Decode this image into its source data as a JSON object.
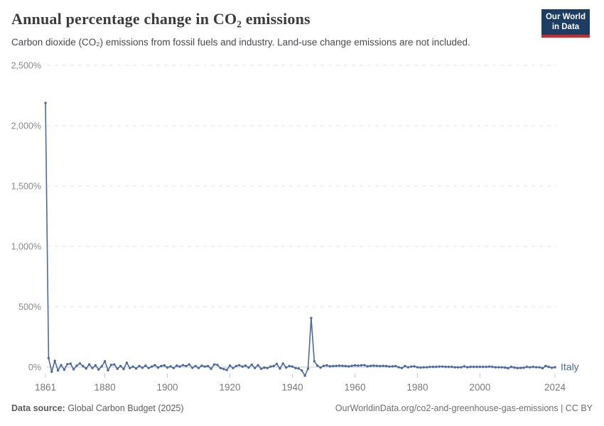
{
  "header": {
    "title": "Annual percentage change in CO₂ emissions",
    "subtitle": "Carbon dioxide (CO₂) emissions from fossil fuels and industry. Land-use change emissions are not included."
  },
  "logo": {
    "line1": "Our World",
    "line2": "in Data",
    "bg_color": "#1d3d63",
    "accent_color": "#cb2d30"
  },
  "footer": {
    "source_label": "Data source:",
    "source_text": " Global Carbon Budget (2025)",
    "link_text": "OurWorldinData.org/co2-and-greenhouse-gas-emissions | CC BY"
  },
  "chart_data": {
    "type": "line",
    "title": "Annual percentage change in CO₂ emissions",
    "xlabel": "",
    "ylabel": "",
    "legend_position": "end-of-line-label",
    "grid": "horizontal-dashed",
    "colors": {
      "gridline": "#e2e2e2",
      "zero_line": "#c9c9c9",
      "tick_label": "#87898c",
      "x_tick_label": "#76787c"
    },
    "x_axis": {
      "min": 1861,
      "max": 2024,
      "ticks": [
        {
          "value": 1861,
          "label": "1861"
        },
        {
          "value": 1880,
          "label": "1880"
        },
        {
          "value": 1900,
          "label": "1900"
        },
        {
          "value": 1920,
          "label": "1920"
        },
        {
          "value": 1940,
          "label": "1940"
        },
        {
          "value": 1960,
          "label": "1960"
        },
        {
          "value": 1980,
          "label": "1980"
        },
        {
          "value": 2000,
          "label": "2000"
        },
        {
          "value": 2024,
          "label": "2024"
        }
      ]
    },
    "y_axis": {
      "unit": "%",
      "range": [
        -100,
        2500
      ],
      "ticks": [
        {
          "value": 0,
          "label": "0%"
        },
        {
          "value": 500,
          "label": "500%"
        },
        {
          "value": 1000,
          "label": "1,000%"
        },
        {
          "value": 1500,
          "label": "1,500%"
        },
        {
          "value": 2000,
          "label": "2,000%"
        },
        {
          "value": 2500,
          "label": "2,500%"
        }
      ]
    },
    "series": [
      {
        "name": "Italy",
        "color": "#4c6a9c",
        "x": [
          1861,
          1862,
          1863,
          1864,
          1865,
          1866,
          1867,
          1868,
          1869,
          1870,
          1871,
          1872,
          1873,
          1874,
          1875,
          1876,
          1877,
          1878,
          1879,
          1880,
          1881,
          1882,
          1883,
          1884,
          1885,
          1886,
          1887,
          1888,
          1889,
          1890,
          1891,
          1892,
          1893,
          1894,
          1895,
          1896,
          1897,
          1898,
          1899,
          1900,
          1901,
          1902,
          1903,
          1904,
          1905,
          1906,
          1907,
          1908,
          1909,
          1910,
          1911,
          1912,
          1913,
          1914,
          1915,
          1916,
          1917,
          1918,
          1919,
          1920,
          1921,
          1922,
          1923,
          1924,
          1925,
          1926,
          1927,
          1928,
          1929,
          1930,
          1931,
          1932,
          1933,
          1934,
          1935,
          1936,
          1937,
          1938,
          1939,
          1940,
          1941,
          1942,
          1943,
          1944,
          1945,
          1946,
          1947,
          1948,
          1949,
          1950,
          1951,
          1952,
          1953,
          1954,
          1955,
          1956,
          1957,
          1958,
          1959,
          1960,
          1961,
          1962,
          1963,
          1964,
          1965,
          1966,
          1967,
          1968,
          1969,
          1970,
          1971,
          1972,
          1973,
          1974,
          1975,
          1976,
          1977,
          1978,
          1979,
          1980,
          1981,
          1982,
          1983,
          1984,
          1985,
          1986,
          1987,
          1988,
          1989,
          1990,
          1991,
          1992,
          1993,
          1994,
          1995,
          1996,
          1997,
          1998,
          1999,
          2000,
          2001,
          2002,
          2003,
          2004,
          2005,
          2006,
          2007,
          2008,
          2009,
          2010,
          2011,
          2012,
          2013,
          2014,
          2015,
          2016,
          2017,
          2018,
          2019,
          2020,
          2021,
          2022,
          2023,
          2024
        ],
        "values": [
          2188,
          75,
          -38,
          52,
          -28,
          16,
          -22,
          24,
          28,
          -18,
          12,
          30,
          8,
          -12,
          22,
          -8,
          14,
          -20,
          6,
          48,
          -26,
          18,
          22,
          -14,
          8,
          -16,
          36,
          -8,
          4,
          -12,
          8,
          -6,
          12,
          -8,
          4,
          16,
          -4,
          8,
          14,
          -4,
          6,
          -8,
          12,
          4,
          16,
          8,
          22,
          -6,
          8,
          -8,
          12,
          4,
          8,
          -14,
          22,
          18,
          -8,
          -16,
          -24,
          12,
          -8,
          8,
          16,
          4,
          12,
          -4,
          20,
          -8,
          16,
          -14,
          -4,
          -8,
          4,
          8,
          26,
          -12,
          30,
          -4,
          8,
          4,
          -8,
          -12,
          -28,
          -71,
          -13,
          406,
          48,
          12,
          -4,
          10,
          14,
          6,
          8,
          10,
          12,
          10,
          8,
          6,
          10,
          14,
          12,
          14,
          16,
          6,
          10,
          12,
          10,
          8,
          10,
          8,
          4,
          6,
          8,
          -2,
          -8,
          8,
          -2,
          4,
          6,
          -2,
          -4,
          -2,
          -2,
          2,
          2,
          2,
          4,
          4,
          2,
          2,
          2,
          -2,
          -2,
          -2,
          6,
          -2,
          2,
          2,
          2,
          2,
          2,
          2,
          4,
          2,
          -2,
          -2,
          -2,
          -4,
          -10,
          2,
          -4,
          -9,
          -7,
          -6,
          2,
          -2,
          2,
          -2,
          -2,
          -10,
          9,
          2,
          -6,
          -1
        ]
      }
    ]
  }
}
